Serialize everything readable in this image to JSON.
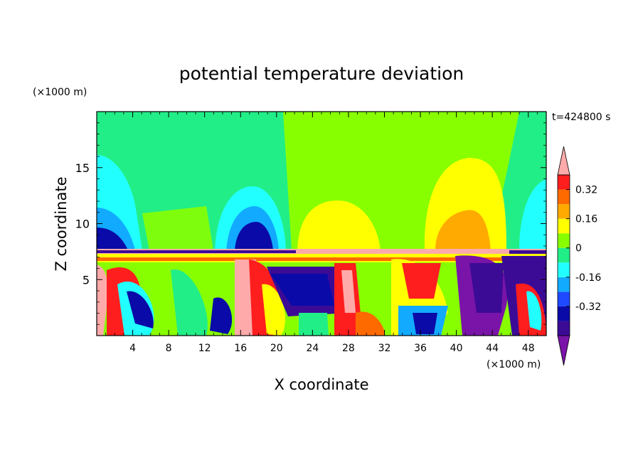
{
  "chart_data": {
    "type": "heatmap",
    "title": "potential temperature deviation",
    "xlabel": "X coordinate",
    "ylabel": "Z coordinate",
    "x_unit": "(×1000 m)",
    "y_unit": "(×1000 m)",
    "time_label": "t=424800 s",
    "xlim": [
      0,
      50
    ],
    "ylim": [
      0,
      20
    ],
    "x_ticks": [
      4,
      8,
      12,
      16,
      20,
      24,
      28,
      32,
      36,
      40,
      44,
      48
    ],
    "y_ticks": [
      5,
      10,
      15
    ],
    "colorbar": {
      "levels": [
        -0.48,
        -0.4,
        -0.32,
        -0.24,
        -0.16,
        -0.08,
        0,
        0.08,
        0.16,
        0.24,
        0.32,
        0.4
      ],
      "colors": [
        "#7a14a8",
        "#3c0b96",
        "#0a0aa8",
        "#1f49ff",
        "#12aaff",
        "#22ffff",
        "#22ee88",
        "#88ff00",
        "#ffff00",
        "#ffaa00",
        "#ff6a00",
        "#ff1e1e",
        "#ffaaaa"
      ],
      "labels": [
        "0.32",
        "0.16",
        "0",
        "-0.16",
        "-0.32"
      ],
      "label_values": [
        0.32,
        0.16,
        0,
        -0.16,
        -0.32
      ]
    }
  }
}
